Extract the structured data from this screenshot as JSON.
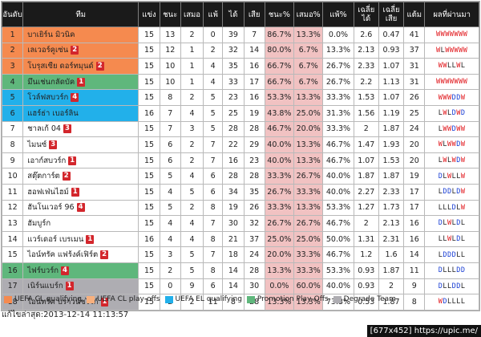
{
  "headers": {
    "rank": "อันดับ",
    "team": "ทีม",
    "played": "แข่ง",
    "won": "ชนะ",
    "drawn": "เสมอ",
    "lost": "แพ้",
    "gf": "ได้",
    "ga": "เสีย",
    "win_pct": "ชนะ%",
    "draw_pct": "เสมอ%",
    "loss_pct": "แพ้%",
    "avg_gf": "เฉลี่ย ได้",
    "avg_ga": "เฉลี่ย เสีย",
    "points": "แต้ม",
    "form": "ผลที่ผ่านมา"
  },
  "rows": [
    {
      "rank": "1",
      "team": "บาเยิร์น มิวนิค",
      "badge": "",
      "played": "15",
      "won": "13",
      "drawn": "2",
      "lost": "0",
      "gf": "39",
      "ga": "7",
      "win_pct": "86.7%",
      "draw_pct": "13.3%",
      "loss_pct": "0.0%",
      "avg_gf": "2.6",
      "avg_ga": "0.47",
      "points": "41",
      "form": "WWWWWWW",
      "zone": "cl"
    },
    {
      "rank": "2",
      "team": "เลเวอร์คูเซ่น",
      "badge": "2",
      "played": "15",
      "won": "12",
      "drawn": "1",
      "lost": "2",
      "gf": "32",
      "ga": "14",
      "win_pct": "80.0%",
      "draw_pct": "6.7%",
      "loss_pct": "13.3%",
      "avg_gf": "2.13",
      "avg_ga": "0.93",
      "points": "37",
      "form": "WLWWWWW",
      "zone": "cl"
    },
    {
      "rank": "3",
      "team": "โบรุสเซีย ดอร์ทมุนด์",
      "badge": "2",
      "played": "15",
      "won": "10",
      "drawn": "1",
      "lost": "4",
      "gf": "35",
      "ga": "16",
      "win_pct": "66.7%",
      "draw_pct": "6.7%",
      "loss_pct": "26.7%",
      "avg_gf": "2.33",
      "avg_ga": "1.07",
      "points": "31",
      "form": "WWLLWL",
      "zone": "cl"
    },
    {
      "rank": "4",
      "team": "มึนเช่นกลัดบัค",
      "badge": "1",
      "played": "15",
      "won": "10",
      "drawn": "1",
      "lost": "4",
      "gf": "33",
      "ga": "17",
      "win_pct": "66.7%",
      "draw_pct": "6.7%",
      "loss_pct": "26.7%",
      "avg_gf": "2.2",
      "avg_ga": "1.13",
      "points": "31",
      "form": "WWWWWWW",
      "zone": "prom"
    },
    {
      "rank": "5",
      "team": "โวล์ฟสบวร์ก",
      "badge": "4",
      "played": "15",
      "won": "8",
      "drawn": "2",
      "lost": "5",
      "gf": "23",
      "ga": "16",
      "win_pct": "53.3%",
      "draw_pct": "13.3%",
      "loss_pct": "33.3%",
      "avg_gf": "1.53",
      "avg_ga": "1.07",
      "points": "26",
      "form": "WWWDDW",
      "zone": "el"
    },
    {
      "rank": "6",
      "team": "แฮร์ธ่า เบอร์ลิน",
      "badge": "",
      "played": "16",
      "won": "7",
      "drawn": "4",
      "lost": "5",
      "gf": "25",
      "ga": "19",
      "win_pct": "43.8%",
      "draw_pct": "25.0%",
      "loss_pct": "31.3%",
      "avg_gf": "1.56",
      "avg_ga": "1.19",
      "points": "25",
      "form": "LWLDWD",
      "zone": "el"
    },
    {
      "rank": "7",
      "team": "ชาลเก้ 04",
      "badge": "3",
      "played": "15",
      "won": "7",
      "drawn": "3",
      "lost": "5",
      "gf": "28",
      "ga": "28",
      "win_pct": "46.7%",
      "draw_pct": "20.0%",
      "loss_pct": "33.3%",
      "avg_gf": "2",
      "avg_ga": "1.87",
      "points": "24",
      "form": "LWWDWW",
      "zone": "none"
    },
    {
      "rank": "8",
      "team": "ไมนซ์",
      "badge": "3",
      "played": "15",
      "won": "6",
      "drawn": "2",
      "lost": "7",
      "gf": "22",
      "ga": "29",
      "win_pct": "40.0%",
      "draw_pct": "13.3%",
      "loss_pct": "46.7%",
      "avg_gf": "1.47",
      "avg_ga": "1.93",
      "points": "20",
      "form": "WLWWDW",
      "zone": "none"
    },
    {
      "rank": "9",
      "team": "เอาก์สบวร์ก",
      "badge": "1",
      "played": "15",
      "won": "6",
      "drawn": "2",
      "lost": "7",
      "gf": "16",
      "ga": "23",
      "win_pct": "40.0%",
      "draw_pct": "13.3%",
      "loss_pct": "46.7%",
      "avg_gf": "1.07",
      "avg_ga": "1.53",
      "points": "20",
      "form": "LWLWDW",
      "zone": "none"
    },
    {
      "rank": "10",
      "team": "สตุ๊ตการ์ต",
      "badge": "2",
      "played": "15",
      "won": "5",
      "drawn": "4",
      "lost": "6",
      "gf": "28",
      "ga": "28",
      "win_pct": "33.3%",
      "draw_pct": "26.7%",
      "loss_pct": "40.0%",
      "avg_gf": "1.87",
      "avg_ga": "1.87",
      "points": "19",
      "form": "DLWLLW",
      "zone": "none"
    },
    {
      "rank": "11",
      "team": "ฮอฟเฟ่นไฮม์",
      "badge": "1",
      "played": "15",
      "won": "4",
      "drawn": "5",
      "lost": "6",
      "gf": "34",
      "ga": "35",
      "win_pct": "26.7%",
      "draw_pct": "33.3%",
      "loss_pct": "40.0%",
      "avg_gf": "2.27",
      "avg_ga": "2.33",
      "points": "17",
      "form": "LDDLDW",
      "zone": "none"
    },
    {
      "rank": "12",
      "team": "ฮันโนเวอร์ 96",
      "badge": "4",
      "played": "15",
      "won": "5",
      "drawn": "2",
      "lost": "8",
      "gf": "19",
      "ga": "26",
      "win_pct": "33.3%",
      "draw_pct": "13.3%",
      "loss_pct": "53.3%",
      "avg_gf": "1.27",
      "avg_ga": "1.73",
      "points": "17",
      "form": "LLLDLW",
      "zone": "none"
    },
    {
      "rank": "13",
      "team": "ฮัมบูร์ก",
      "badge": "",
      "played": "15",
      "won": "4",
      "drawn": "4",
      "lost": "7",
      "gf": "30",
      "ga": "32",
      "win_pct": "26.7%",
      "draw_pct": "26.7%",
      "loss_pct": "46.7%",
      "avg_gf": "2",
      "avg_ga": "2.13",
      "points": "16",
      "form": "DLWLDL",
      "zone": "none"
    },
    {
      "rank": "14",
      "team": "แวร์เดอร์ เบรเมน",
      "badge": "1",
      "played": "16",
      "won": "4",
      "drawn": "4",
      "lost": "8",
      "gf": "21",
      "ga": "37",
      "win_pct": "25.0%",
      "draw_pct": "25.0%",
      "loss_pct": "50.0%",
      "avg_gf": "1.31",
      "avg_ga": "2.31",
      "points": "16",
      "form": "LLWLDL",
      "zone": "none"
    },
    {
      "rank": "15",
      "team": "ไอน์ทรัค แฟร้งค์เฟิร์ต",
      "badge": "2",
      "played": "15",
      "won": "3",
      "drawn": "5",
      "lost": "7",
      "gf": "18",
      "ga": "24",
      "win_pct": "20.0%",
      "draw_pct": "33.3%",
      "loss_pct": "46.7%",
      "avg_gf": "1.2",
      "avg_ga": "1.6",
      "points": "14",
      "form": "LDDDLL",
      "zone": "none"
    },
    {
      "rank": "16",
      "team": "ไฟร์บวร์ก",
      "badge": "4",
      "played": "15",
      "won": "2",
      "drawn": "5",
      "lost": "8",
      "gf": "14",
      "ga": "28",
      "win_pct": "13.3%",
      "draw_pct": "33.3%",
      "loss_pct": "53.3%",
      "avg_gf": "0.93",
      "avg_ga": "1.87",
      "points": "11",
      "form": "DLLLDD",
      "zone": "prom"
    },
    {
      "rank": "17",
      "team": "เนิร์นแบร์ก",
      "badge": "1",
      "played": "15",
      "won": "0",
      "drawn": "9",
      "lost": "6",
      "gf": "14",
      "ga": "30",
      "win_pct": "0.0%",
      "draw_pct": "60.0%",
      "loss_pct": "40.0%",
      "avg_gf": "0.93",
      "avg_ga": "2",
      "points": "9",
      "form": "DLLDDL",
      "zone": "deg"
    },
    {
      "rank": "18",
      "team": "ไอน์ทรัค บราวน์ชไวก์",
      "badge": "1",
      "played": "15",
      "won": "2",
      "drawn": "2",
      "lost": "11",
      "gf": "8",
      "ga": "28",
      "win_pct": "13.3%",
      "draw_pct": "13.3%",
      "loss_pct": "73.3%",
      "avg_gf": "0.53",
      "avg_ga": "1.87",
      "points": "8",
      "form": "WDLLLL",
      "zone": "deg"
    }
  ],
  "legend": [
    {
      "label": "UEFA CL qualifying",
      "color": "#f58a4f"
    },
    {
      "label": "UEFA CL play-offs",
      "color": "#f7b07e"
    },
    {
      "label": "UEFA EL qualifying",
      "color": "#22b0ea"
    },
    {
      "label": "Promotion Play-Offs",
      "color": "#5fb77c"
    },
    {
      "label": "Degrade Team",
      "color": "#aeadb2"
    }
  ],
  "updated": "แก้ไขล่าสุด:2013-12-14 11:13:57",
  "footer": "[677x452] https://upic.me/"
}
